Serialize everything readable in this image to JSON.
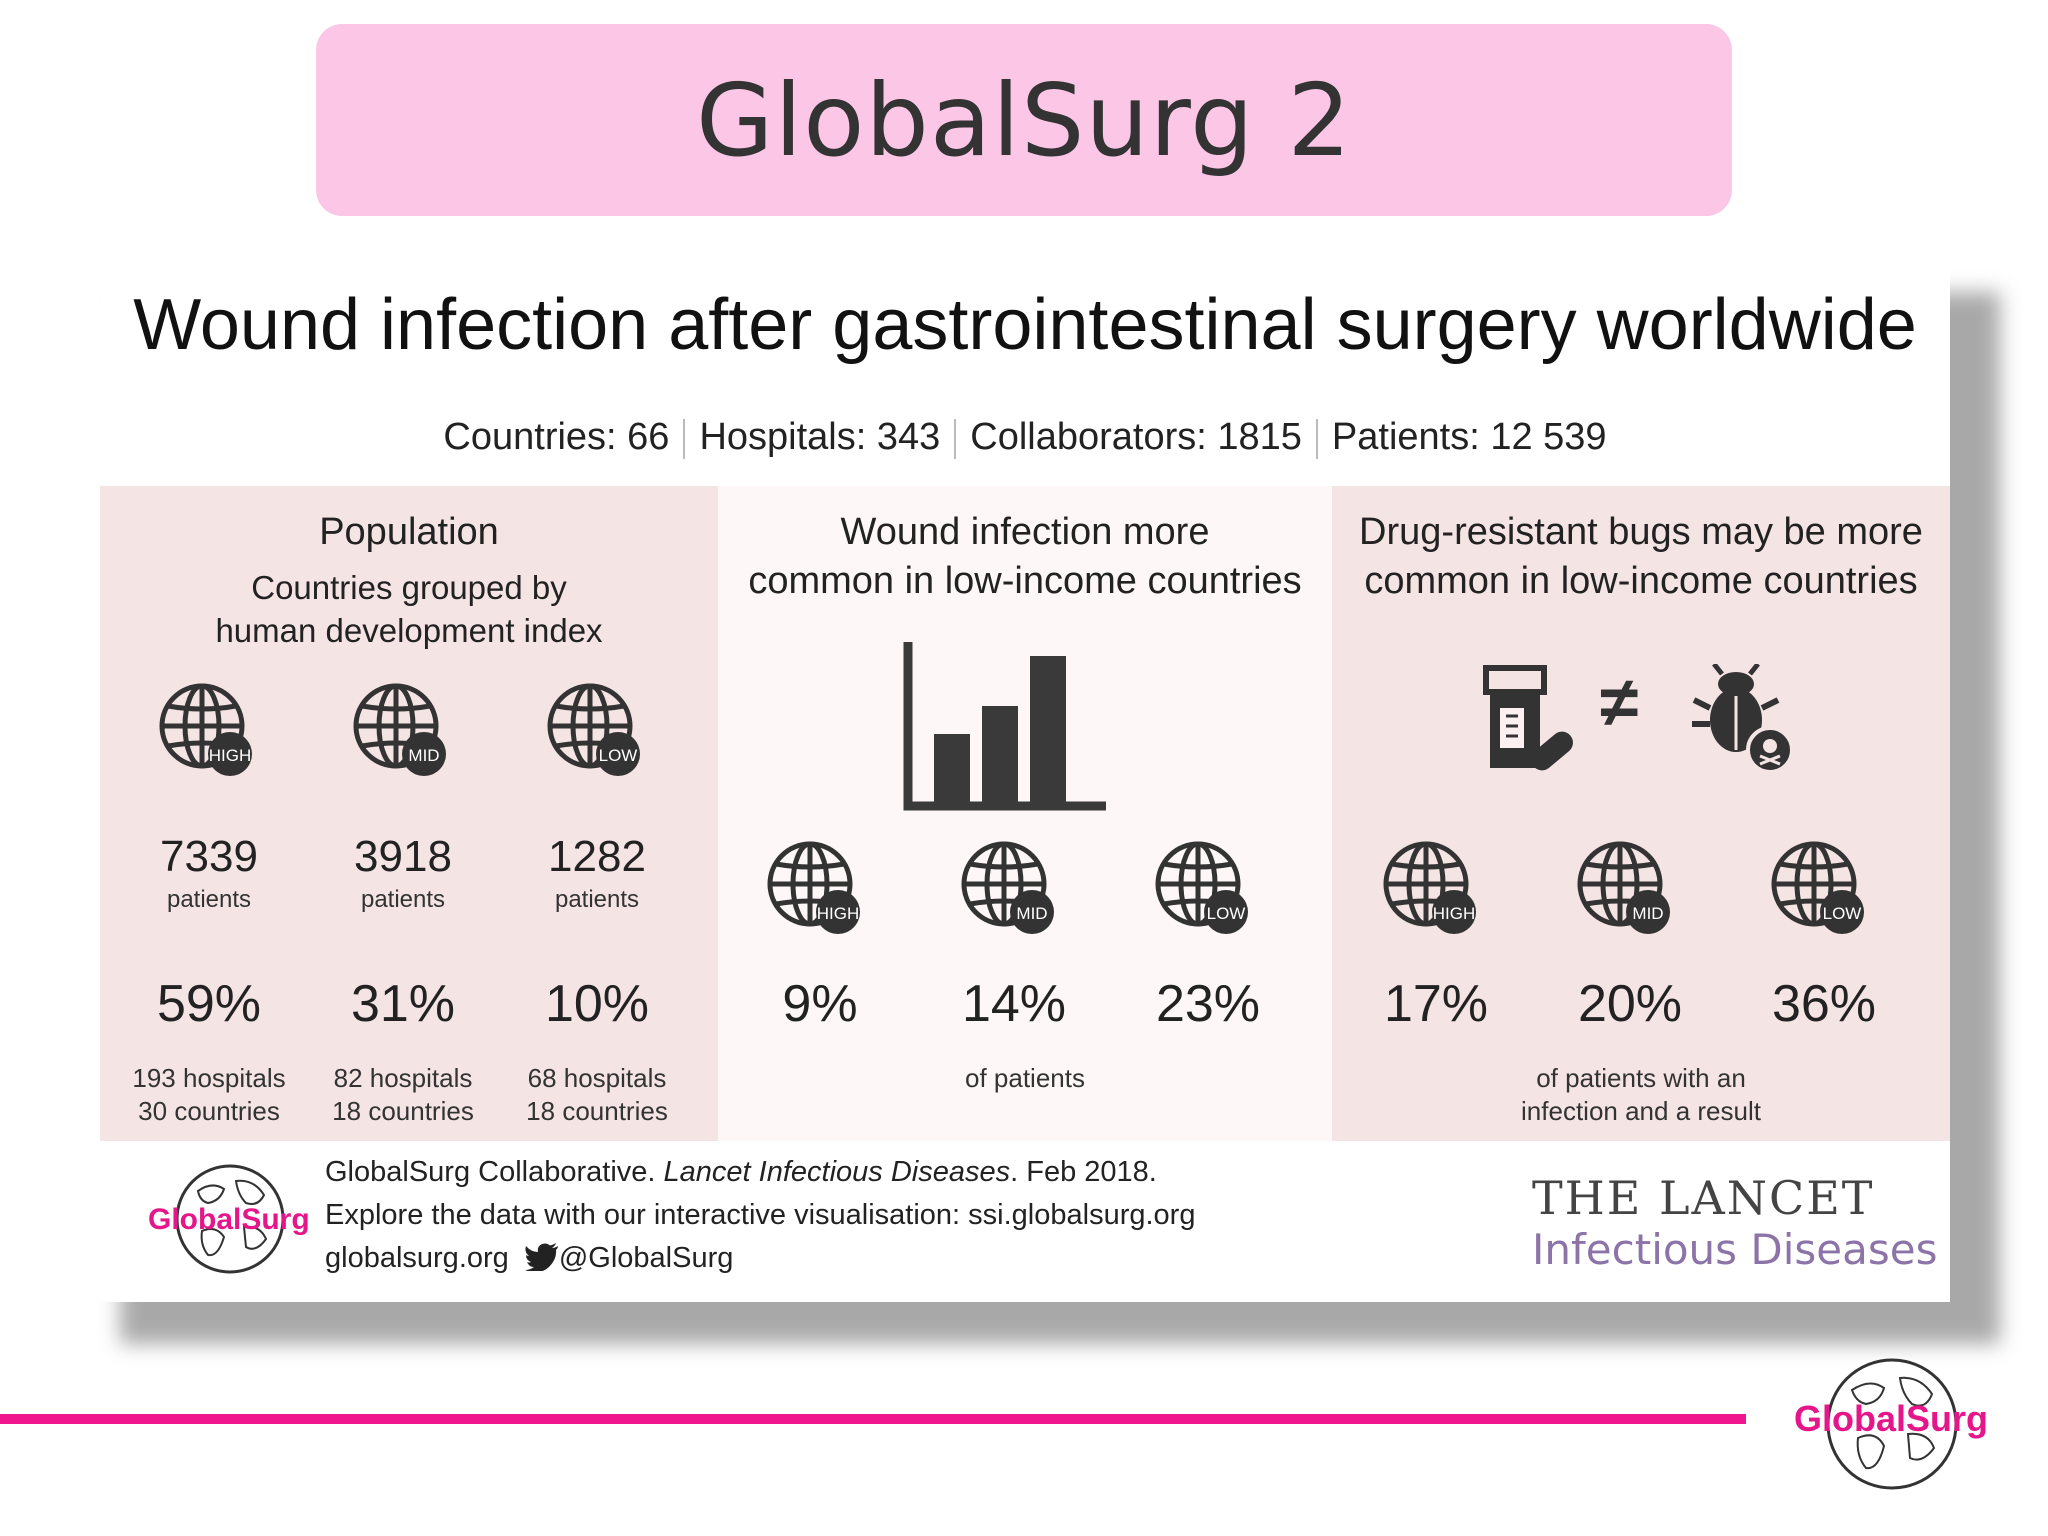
{
  "slide_title": "GlobalSurg 2",
  "headline": "Wound infection after gastrointestinal surgery worldwide",
  "stats": [
    "Countries: 66",
    "Hospitals: 343",
    "Collaborators: 1815",
    "Patients: 12 539"
  ],
  "population": {
    "title": "Population",
    "subtitle_line1": "Countries grouped by",
    "subtitle_line2": "human development index",
    "groups": [
      {
        "badge": "HIGH",
        "patients": "7339",
        "patients_label": "patients",
        "percent": "59%",
        "hospitals": "193 hospitals",
        "countries": "30 countries"
      },
      {
        "badge": "MID",
        "patients": "3918",
        "patients_label": "patients",
        "percent": "31%",
        "hospitals": "82 hospitals",
        "countries": "18 countries"
      },
      {
        "badge": "LOW",
        "patients": "1282",
        "patients_label": "patients",
        "percent": "10%",
        "hospitals": "68 hospitals",
        "countries": "18 countries"
      }
    ]
  },
  "infection": {
    "title_line1": "Wound infection more",
    "title_line2": "common in low-income countries",
    "icon": "bar-chart-icon",
    "groups": [
      {
        "badge": "HIGH",
        "percent": "9%"
      },
      {
        "badge": "MID",
        "percent": "14%"
      },
      {
        "badge": "LOW",
        "percent": "23%"
      }
    ],
    "caption": "of patients"
  },
  "resistance": {
    "title_line1": "Drug-resistant bugs may be more",
    "title_line2": "common in low-income countries",
    "icons": [
      "pill-bottle-icon",
      "not-equal-icon",
      "bug-icon"
    ],
    "not_equal": "≠",
    "groups": [
      {
        "badge": "HIGH",
        "percent": "17%"
      },
      {
        "badge": "MID",
        "percent": "20%"
      },
      {
        "badge": "LOW",
        "percent": "36%"
      }
    ],
    "caption_line1": "of patients with an",
    "caption_line2": "infection and a result"
  },
  "footer": {
    "logo_text": "GlobalSurg",
    "cite_prefix": "GlobalSurg Collaborative. ",
    "cite_journal": "Lancet Infectious Diseases",
    "cite_suffix": ". Feb 2018.",
    "line2": "Explore the data with our interactive visualisation: ssi.globalsurg.org",
    "site": "globalsurg.org",
    "twitter": "@GlobalSurg",
    "lancet_line1": "THE LANCET",
    "lancet_line2": "Infectious Diseases"
  },
  "corner_logo_text": "GlobalSurg",
  "colors": {
    "title_bg": "#fcc6e6",
    "accent_pink": "#f0168d",
    "panel_pink": "#f5e4e4",
    "lancet_purple": "#8c74a8"
  }
}
